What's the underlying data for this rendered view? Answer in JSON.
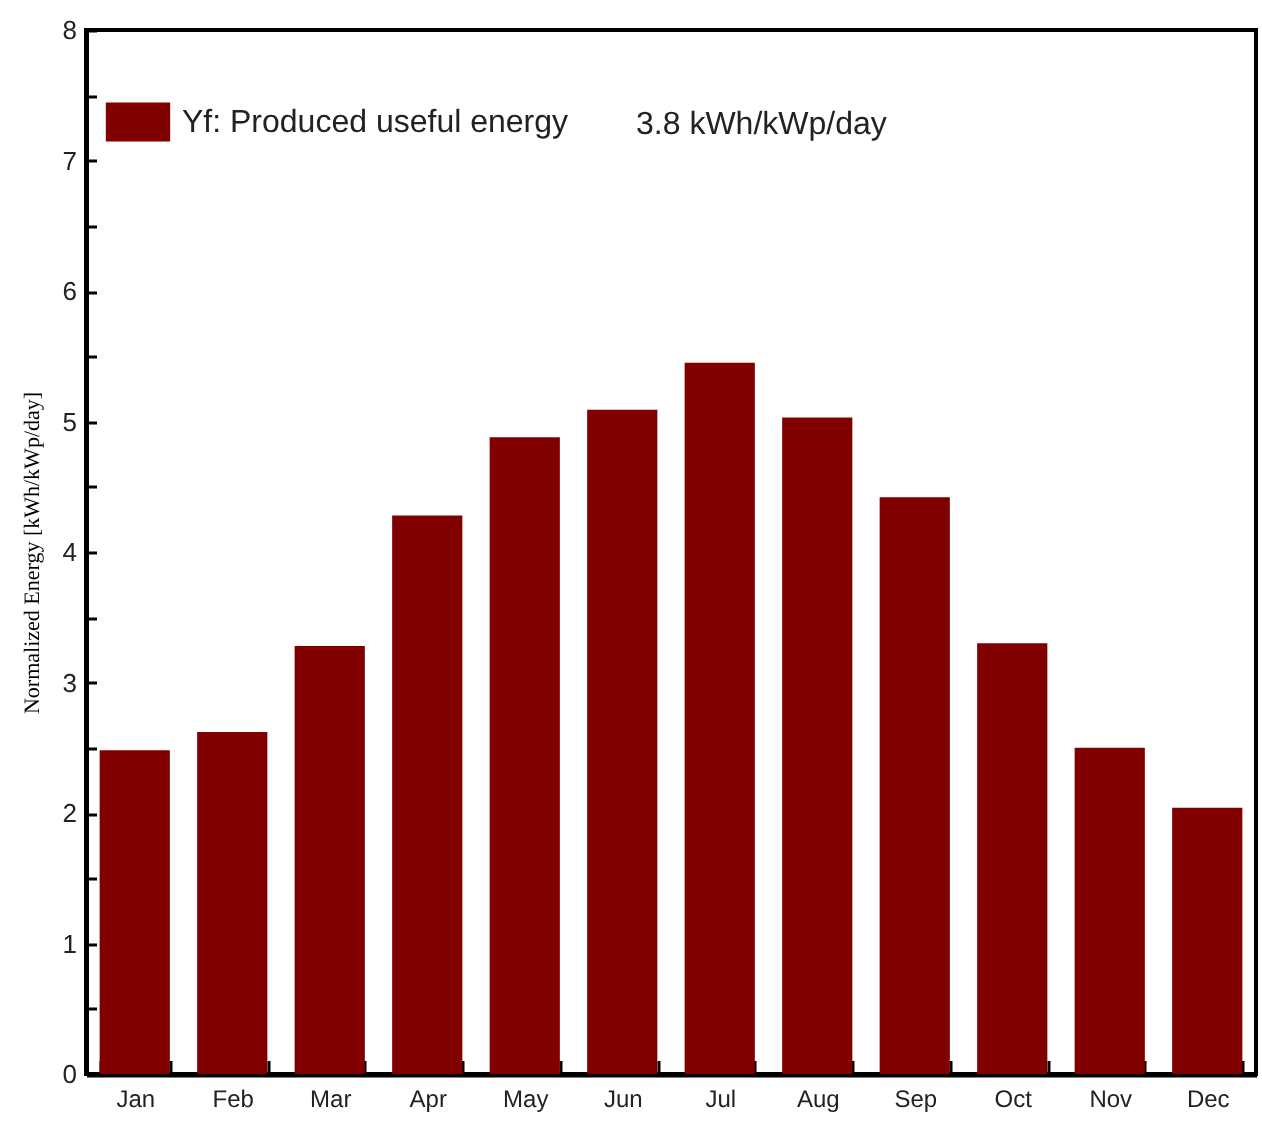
{
  "chart_data": {
    "type": "bar",
    "ylabel": "Normalized Energy [kWh/kWp/day]",
    "annotations": [
      "3.8 kWh/kWp/day"
    ],
    "categories": [
      "Jan",
      "Feb",
      "Mar",
      "Apr",
      "May",
      "Jun",
      "Jul",
      "Aug",
      "Sep",
      "Oct",
      "Nov",
      "Dec"
    ],
    "series": [
      {
        "name": "Yf: Produced useful energy",
        "color": "#800000",
        "values": [
          2.48,
          2.62,
          3.28,
          4.28,
          4.88,
          5.09,
          5.45,
          5.03,
          4.42,
          3.3,
          2.5,
          2.04
        ]
      }
    ],
    "ylim": [
      0,
      8
    ],
    "yticks": [
      0,
      {
        "value": 0.5,
        "label": null
      },
      1,
      {
        "value": 1.5,
        "label": null
      },
      2,
      {
        "value": 2.5,
        "label": null
      },
      3,
      {
        "value": 3.5,
        "label": null
      },
      4,
      {
        "value": 4.5,
        "label": null
      },
      5,
      {
        "value": 5.5,
        "label": null
      },
      6,
      {
        "value": 6.5,
        "label": null
      },
      7,
      {
        "value": 7.5,
        "label": null
      },
      8
    ],
    "grid": false,
    "legend": "top left"
  }
}
